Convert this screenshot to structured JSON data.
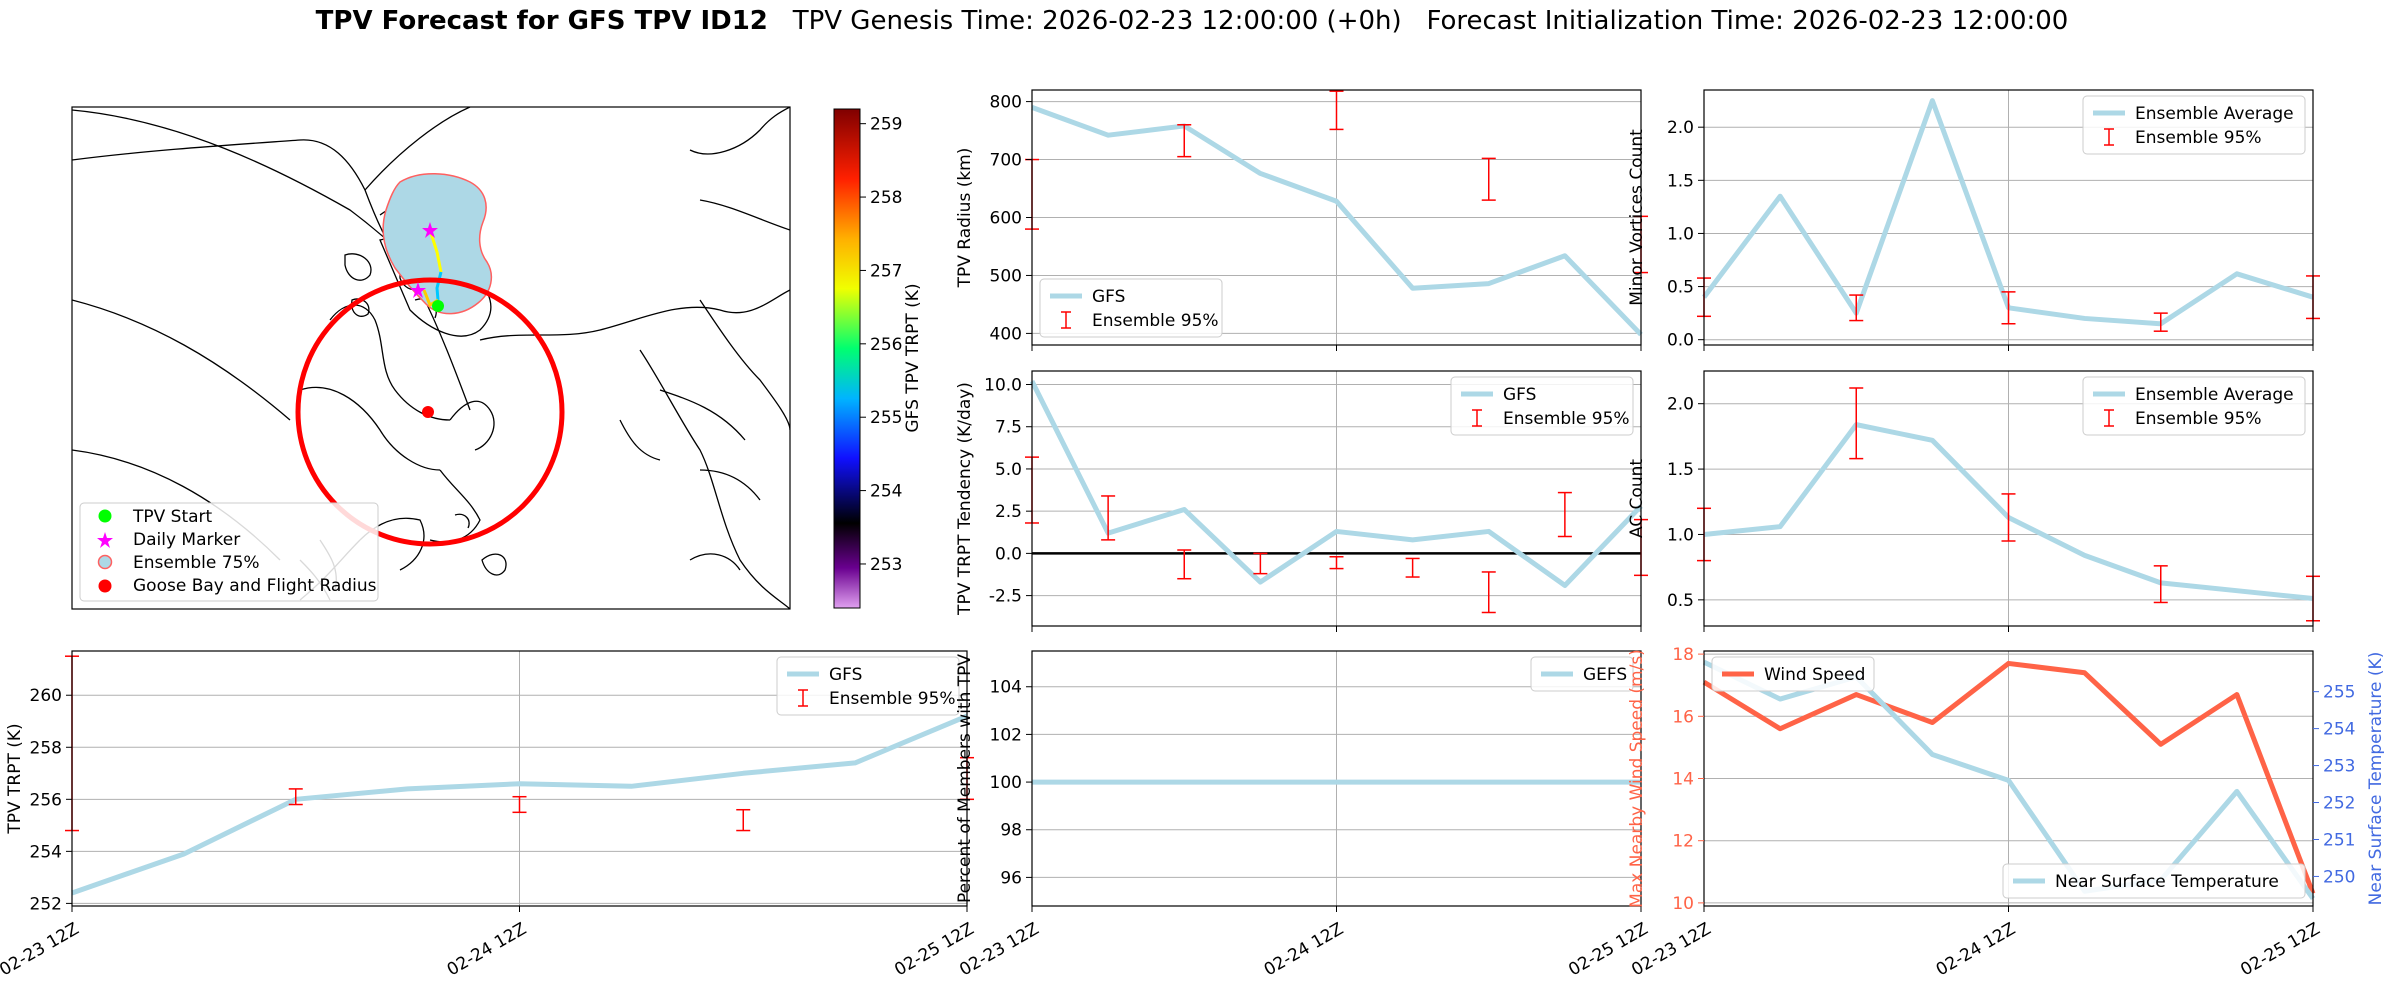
{
  "header": {
    "title_bold": "TPV Forecast for GFS TPV ID12",
    "genesis": "TPV Genesis Time: 2026-02-23 12:00:00 (+0h)",
    "init": "Forecast Initialization Time: 2026-02-23 12:00:00"
  },
  "colors": {
    "line": "#add8e6",
    "errorbar": "#ff0000",
    "wind": "#ff6347",
    "temp_axis": "#4169e1",
    "grid": "#b0b0b0"
  },
  "map": {
    "legend": [
      "TPV Start",
      "Daily Marker",
      "Ensemble 75%",
      "Goose Bay and Flight Radius"
    ],
    "legend_colors": [
      "#00ff00",
      "#ff00ff",
      "#add8e6",
      "#ff0000"
    ],
    "colorbar": {
      "label": "GFS TPV TRPT (K)",
      "ticks": [
        "253",
        "254",
        "255",
        "256",
        "257",
        "258",
        "259"
      ],
      "min": 252.4,
      "max": 259.2
    }
  },
  "x_ticks": [
    "02-23 12Z",
    "02-24 12Z",
    "02-25 12Z"
  ],
  "chart_data": [
    {
      "id": "radius",
      "type": "line",
      "ylabel": "TPV Radius (km)",
      "x": [
        0,
        0.25,
        0.5,
        0.75,
        1.0,
        1.25,
        1.5,
        1.75,
        2.0
      ],
      "values": [
        790,
        742,
        758,
        676,
        628,
        478,
        486,
        534,
        398
      ],
      "ylim": [
        380,
        820
      ],
      "yticks": [
        400,
        500,
        600,
        700,
        800
      ],
      "errorbars": [
        {
          "x": 0,
          "lo": 580,
          "hi": 700
        },
        {
          "x": 0.5,
          "lo": 705,
          "hi": 760
        },
        {
          "x": 1.0,
          "lo": 752,
          "hi": 818
        },
        {
          "x": 1.5,
          "lo": 630,
          "hi": 702
        },
        {
          "x": 2.0,
          "lo": 505,
          "hi": 602
        }
      ],
      "legend": [
        "GFS",
        "Ensemble 95%"
      ],
      "legend_loc": "lower-left",
      "zero_line": false,
      "grid": true
    },
    {
      "id": "minor",
      "type": "line",
      "ylabel": "Minor Vortices Count",
      "x": [
        0,
        0.25,
        0.5,
        0.75,
        1.0,
        1.25,
        1.5,
        1.75,
        2.0
      ],
      "values": [
        0.4,
        1.35,
        0.25,
        2.25,
        0.3,
        0.2,
        0.15,
        0.62,
        0.4
      ],
      "ylim": [
        -0.05,
        2.35
      ],
      "yticks": [
        0.0,
        0.5,
        1.0,
        1.5,
        2.0
      ],
      "errorbars": [
        {
          "x": 0,
          "lo": 0.22,
          "hi": 0.58
        },
        {
          "x": 0.5,
          "lo": 0.18,
          "hi": 0.42
        },
        {
          "x": 1.0,
          "lo": 0.15,
          "hi": 0.45
        },
        {
          "x": 1.5,
          "lo": 0.08,
          "hi": 0.25
        },
        {
          "x": 2.0,
          "lo": 0.2,
          "hi": 0.6
        }
      ],
      "legend": [
        "Ensemble Average",
        "Ensemble 95%"
      ],
      "legend_loc": "upper-right",
      "zero_line": false,
      "grid": true
    },
    {
      "id": "tendency",
      "type": "line",
      "ylabel": "TPV TRPT Tendency (K/day)",
      "x": [
        0,
        0.25,
        0.5,
        0.75,
        1.0,
        1.25,
        1.5,
        1.75,
        2.0
      ],
      "values": [
        10.2,
        1.2,
        2.6,
        -1.7,
        1.3,
        0.8,
        1.3,
        -1.9,
        2.8
      ],
      "ylim": [
        -4.3,
        10.8
      ],
      "yticks": [
        -2.5,
        0.0,
        2.5,
        5.0,
        7.5,
        10.0
      ],
      "errorbars": [
        {
          "x": 0,
          "lo": 1.8,
          "hi": 5.7
        },
        {
          "x": 0.25,
          "lo": 0.8,
          "hi": 3.4
        },
        {
          "x": 0.5,
          "lo": -1.5,
          "hi": 0.2
        },
        {
          "x": 0.75,
          "lo": -1.2,
          "hi": 0.0
        },
        {
          "x": 1.0,
          "lo": -0.9,
          "hi": -0.2
        },
        {
          "x": 1.25,
          "lo": -1.4,
          "hi": -0.3
        },
        {
          "x": 1.5,
          "lo": -3.5,
          "hi": -1.1
        },
        {
          "x": 1.75,
          "lo": 1.0,
          "hi": 3.6
        },
        {
          "x": 2.0,
          "lo": -1.3,
          "hi": 2.0
        }
      ],
      "legend": [
        "GFS",
        "Ensemble 95%"
      ],
      "legend_loc": "upper-right",
      "zero_line": true,
      "grid": true
    },
    {
      "id": "ac",
      "type": "line",
      "ylabel": "AC Count",
      "x": [
        0,
        0.25,
        0.5,
        0.75,
        1.0,
        1.25,
        1.5,
        1.75,
        2.0
      ],
      "values": [
        1.0,
        1.06,
        1.84,
        1.72,
        1.13,
        0.84,
        0.63,
        0.57,
        0.51
      ],
      "ylim": [
        0.3,
        2.25
      ],
      "yticks": [
        0.5,
        1.0,
        1.5,
        2.0
      ],
      "errorbars": [
        {
          "x": 0,
          "lo": 0.8,
          "hi": 1.2
        },
        {
          "x": 0.5,
          "lo": 1.58,
          "hi": 2.12
        },
        {
          "x": 1.0,
          "lo": 0.95,
          "hi": 1.31
        },
        {
          "x": 1.5,
          "lo": 0.48,
          "hi": 0.76
        },
        {
          "x": 2.0,
          "lo": 0.34,
          "hi": 0.68
        }
      ],
      "legend": [
        "Ensemble Average",
        "Ensemble 95%"
      ],
      "legend_loc": "upper-right",
      "zero_line": false,
      "grid": true
    },
    {
      "id": "trpt",
      "type": "line",
      "ylabel": "TPV TRPT (K)",
      "x": [
        0,
        0.25,
        0.5,
        0.75,
        1.0,
        1.25,
        1.5,
        1.75,
        2.0
      ],
      "values": [
        252.4,
        253.9,
        256.0,
        256.4,
        256.6,
        256.5,
        257.0,
        257.4,
        259.2
      ],
      "ylim": [
        251.9,
        261.7
      ],
      "yticks": [
        252,
        254,
        256,
        258,
        260
      ],
      "errorbars": [
        {
          "x": 0,
          "lo": 254.8,
          "hi": 261.5
        },
        {
          "x": 0.5,
          "lo": 255.8,
          "hi": 256.4
        },
        {
          "x": 1.0,
          "lo": 255.5,
          "hi": 256.1
        },
        {
          "x": 1.5,
          "lo": 254.8,
          "hi": 255.6
        },
        {
          "x": 2.0,
          "lo": 256.0,
          "hi": 257.6
        }
      ],
      "legend": [
        "GFS",
        "Ensemble 95%"
      ],
      "legend_loc": "upper-right",
      "zero_line": false,
      "grid": true
    },
    {
      "id": "members",
      "type": "line",
      "ylabel": "Percent of Members with TPV",
      "x": [
        0,
        0.25,
        0.5,
        0.75,
        1.0,
        1.25,
        1.5,
        1.75,
        2.0
      ],
      "values": [
        100,
        100,
        100,
        100,
        100,
        100,
        100,
        100,
        100
      ],
      "ylim": [
        94.8,
        105.5
      ],
      "yticks": [
        96,
        98,
        100,
        102,
        104
      ],
      "errorbars": [],
      "legend": [
        "GEFS"
      ],
      "legend_loc": "upper-right",
      "zero_line": false,
      "grid": true
    },
    {
      "id": "wind_temp",
      "type": "line",
      "ylabel": "Max Nearby Wind Speed (m/s)",
      "ylabel_right": "Near Surface Temperature (K)",
      "x": [
        0,
        0.25,
        0.5,
        0.75,
        1.0,
        1.25,
        1.5,
        1.75,
        2.0
      ],
      "series": [
        {
          "name": "Wind Speed",
          "axis": "left",
          "values": [
            17.1,
            15.6,
            16.7,
            15.8,
            17.7,
            17.4,
            15.1,
            16.7,
            10.3
          ]
        },
        {
          "name": "Near Surface Temperature",
          "axis": "right",
          "values": [
            255.8,
            254.8,
            255.4,
            253.3,
            252.6,
            249.6,
            249.9,
            252.3,
            249.4
          ]
        }
      ],
      "ylim": [
        9.9,
        18.1
      ],
      "yticks": [
        10,
        12,
        14,
        16,
        18
      ],
      "ylim_right": [
        249.2,
        256.1
      ],
      "yticks_right": [
        250,
        251,
        252,
        253,
        254,
        255
      ],
      "legend": [
        "Wind Speed",
        "Near Surface Temperature"
      ],
      "legend_loc": "upper-left / lower-right",
      "grid": true
    }
  ]
}
